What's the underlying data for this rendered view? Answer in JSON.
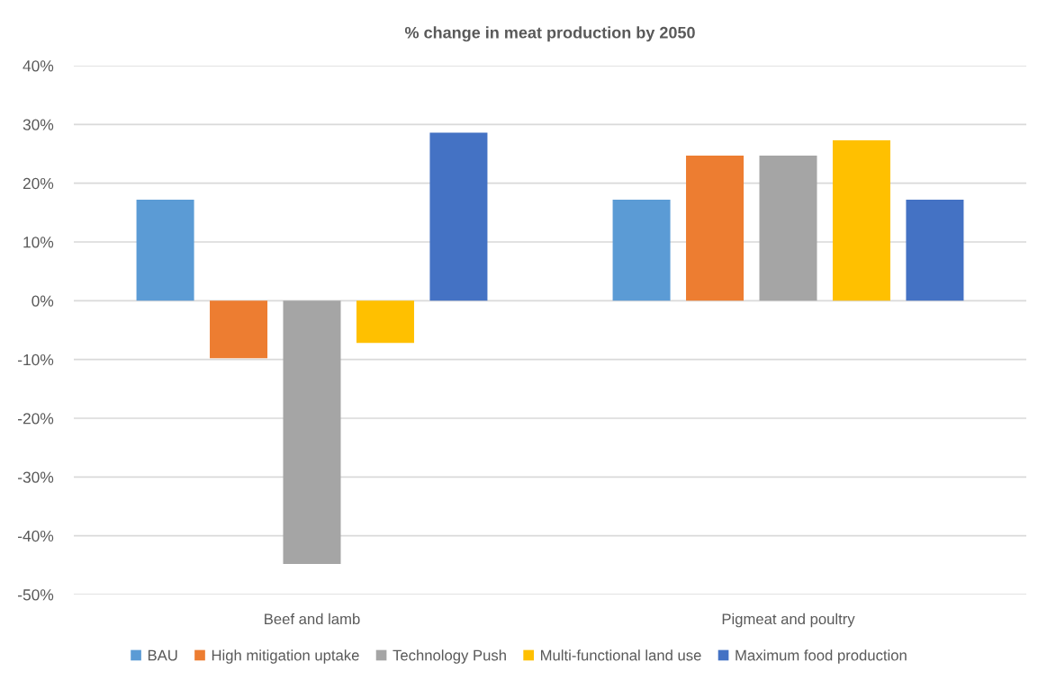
{
  "chart_data": {
    "type": "bar",
    "title": "% change in meat production by 2050",
    "categories": [
      "Beef and lamb",
      "Pigmeat and poultry"
    ],
    "series": [
      {
        "name": "BAU",
        "color": "#5b9bd5",
        "values": [
          17.2,
          17.2
        ]
      },
      {
        "name": "High mitigation uptake",
        "color": "#ed7d31",
        "values": [
          -9.8,
          24.7
        ]
      },
      {
        "name": "Technology Push",
        "color": "#a5a5a5",
        "values": [
          -44.8,
          24.7
        ]
      },
      {
        "name": "Multi-functional land use",
        "color": "#ffc000",
        "values": [
          -7.2,
          27.3
        ]
      },
      {
        "name": "Maximum food production",
        "color": "#4472c4",
        "values": [
          28.6,
          17.2
        ]
      }
    ],
    "ylim": [
      -50,
      40
    ],
    "yticks": [
      {
        "value": -50,
        "label": "-50%"
      },
      {
        "value": -40,
        "label": "-40%"
      },
      {
        "value": -30,
        "label": "-30%"
      },
      {
        "value": -20,
        "label": "-20%"
      },
      {
        "value": -10,
        "label": "-10%"
      },
      {
        "value": 0,
        "label": "0%"
      },
      {
        "value": 10,
        "label": "10%"
      },
      {
        "value": 20,
        "label": "20%"
      },
      {
        "value": 30,
        "label": "30%"
      },
      {
        "value": 40,
        "label": "40%"
      }
    ],
    "grid": "y",
    "legend": "bottom"
  }
}
